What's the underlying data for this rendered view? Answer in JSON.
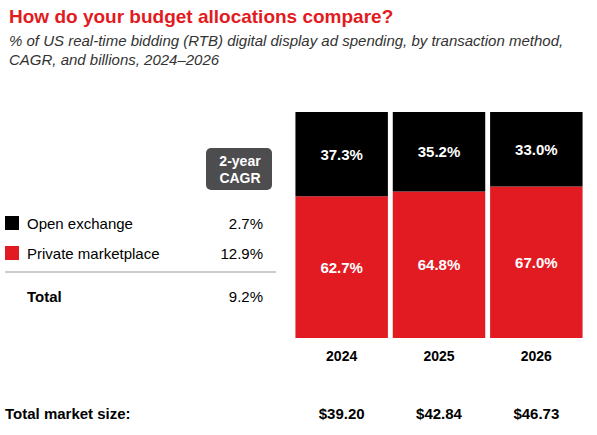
{
  "chart_data": {
    "type": "bar",
    "title": "How do your budget allocations compare?",
    "subtitle": "% of US real-time bidding (RTB) digital display ad spending, by transaction method, CAGR, and billions, 2024–2026",
    "categories": [
      "2024",
      "2025",
      "2026"
    ],
    "series": [
      {
        "name": "Open exchange",
        "color": "#000000",
        "values": [
          37.3,
          35.2,
          33.0
        ],
        "value_labels": [
          "37.3%",
          "35.2%",
          "33.0%"
        ],
        "cagr": {
          "value": 2.7,
          "label": "2.7%"
        }
      },
      {
        "name": "Private marketplace",
        "color": "#e21b23",
        "values": [
          62.7,
          64.8,
          67.0
        ],
        "value_labels": [
          "62.7%",
          "64.8%",
          "67.0%"
        ],
        "cagr": {
          "value": 12.9,
          "label": "12.9%"
        }
      }
    ],
    "cagr_title": "2-year CAGR",
    "total": {
      "name": "Total",
      "cagr": {
        "value": 9.2,
        "label": "9.2%"
      }
    },
    "market_size": {
      "title": "Total market size:",
      "values": [
        39.2,
        42.84,
        46.73
      ],
      "value_labels": [
        "$39.20",
        "$42.84",
        "$46.73"
      ]
    },
    "ylim": [
      0,
      100
    ],
    "yticks": [
      0,
      100
    ],
    "stacked": true,
    "data_labels": true,
    "grid": false,
    "tick_labels": "x"
  }
}
